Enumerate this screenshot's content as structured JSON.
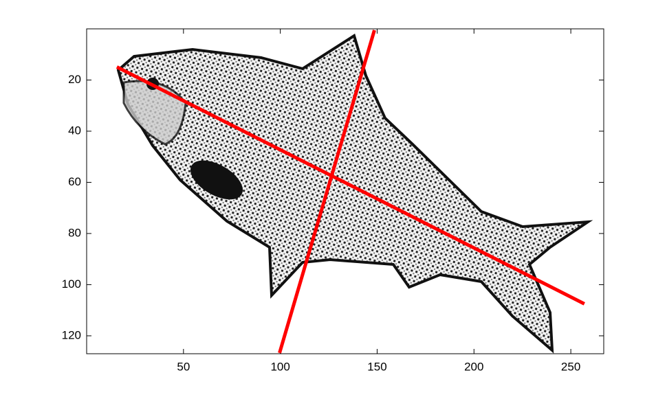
{
  "chart_data": {
    "type": "line",
    "xlim": [
      0,
      267
    ],
    "ylim": [
      0,
      127
    ],
    "y_reversed": true,
    "xticks": [
      50,
      100,
      150,
      200,
      250
    ],
    "yticks": [
      20,
      40,
      60,
      80,
      100,
      120
    ],
    "series": [
      {
        "color": "#ff0000",
        "x": [
          15.6,
          257
        ],
        "values": [
          14.9,
          107.5
        ]
      },
      {
        "color": "#ff0000",
        "x": [
          99.6,
          148.6
        ],
        "values": [
          126.7,
          0.5
        ]
      }
    ]
  }
}
